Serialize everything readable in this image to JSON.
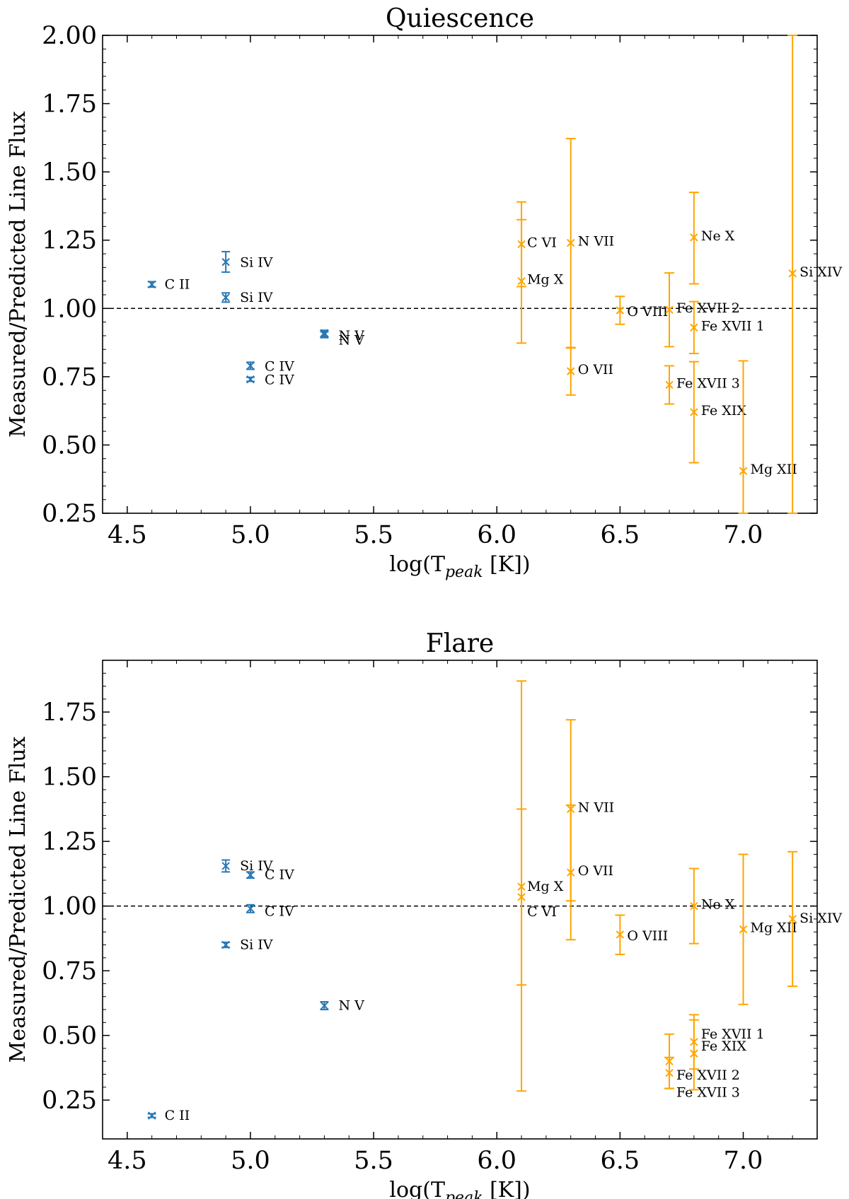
{
  "colors": {
    "uv": "#2878b5",
    "xray": "#ffa500",
    "reference": "#000000"
  },
  "chart_data": [
    {
      "type": "scatter",
      "title": "Quiescence",
      "xlabel": "log(T",
      "xlabel_sub": "peak",
      "xlabel_suffix": " [K])",
      "ylabel": "Measured/Predicted Line Flux",
      "xlim": [
        4.4,
        7.3
      ],
      "ylim": [
        0.25,
        2.0
      ],
      "xticks": [
        "4.5",
        "5.0",
        "5.5",
        "6.0",
        "6.5",
        "7.0"
      ],
      "yticks": [
        "0.25",
        "0.50",
        "0.75",
        "1.00",
        "1.25",
        "1.50",
        "1.75",
        "2.00"
      ],
      "reference_line": 1.0,
      "points": [
        {
          "label": "C II",
          "x": 4.6,
          "y": 1.088,
          "yerr": [
            1.078,
            1.098
          ],
          "color": "uv"
        },
        {
          "label": "Si IV",
          "x": 4.9,
          "y": 1.17,
          "yerr": [
            1.133,
            1.208
          ],
          "color": "uv"
        },
        {
          "label": "Si IV",
          "x": 4.9,
          "y": 1.04,
          "yerr": [
            1.023,
            1.057
          ],
          "color": "uv"
        },
        {
          "label": "C IV",
          "x": 5.0,
          "y": 0.79,
          "yerr": [
            0.777,
            0.803
          ],
          "color": "uv"
        },
        {
          "label": "C IV",
          "x": 5.0,
          "y": 0.74,
          "yerr": [
            0.733,
            0.748
          ],
          "color": "uv"
        },
        {
          "label": "N V",
          "x": 5.3,
          "y": 0.91,
          "yerr": [
            0.896,
            0.92
          ],
          "color": "uv"
        },
        {
          "label": "N V",
          "x": 5.3,
          "y": 0.904,
          "yerr": [
            0.893,
            0.915
          ],
          "color": "uv"
        },
        {
          "label": "C VI",
          "x": 6.1,
          "y": 1.235,
          "yerr": [
            1.08,
            1.39
          ],
          "color": "xray"
        },
        {
          "label": "Mg X",
          "x": 6.1,
          "y": 1.1,
          "yerr": [
            0.873,
            1.325
          ],
          "color": "xray"
        },
        {
          "label": "N VII",
          "x": 6.3,
          "y": 1.24,
          "yerr": [
            0.855,
            1.622
          ],
          "color": "xray"
        },
        {
          "label": "O VII",
          "x": 6.3,
          "y": 0.77,
          "yerr": [
            0.683,
            0.857
          ],
          "color": "xray"
        },
        {
          "label": "O VIII",
          "x": 6.5,
          "y": 0.993,
          "yerr": [
            0.942,
            1.044
          ],
          "color": "xray"
        },
        {
          "label": "Fe XVII 2",
          "x": 6.7,
          "y": 0.995,
          "yerr": [
            0.86,
            1.13
          ],
          "color": "xray"
        },
        {
          "label": "Fe XVII 3",
          "x": 6.7,
          "y": 0.72,
          "yerr": [
            0.65,
            0.79
          ],
          "color": "xray"
        },
        {
          "label": "Ne X",
          "x": 6.8,
          "y": 1.26,
          "yerr": [
            1.09,
            1.425
          ],
          "color": "xray"
        },
        {
          "label": "Fe XVII 1",
          "x": 6.8,
          "y": 0.93,
          "yerr": [
            0.835,
            1.025
          ],
          "color": "xray"
        },
        {
          "label": "Fe XIX",
          "x": 6.8,
          "y": 0.62,
          "yerr": [
            0.435,
            0.805
          ],
          "color": "xray"
        },
        {
          "label": "Mg XII",
          "x": 7.0,
          "y": 0.405,
          "yerr": [
            0.25,
            0.808
          ],
          "color": "xray"
        },
        {
          "label": "Si XIV",
          "x": 7.2,
          "y": 1.128,
          "yerr": [
            0.25,
            2.0
          ],
          "color": "xray"
        }
      ]
    },
    {
      "type": "scatter",
      "title": "Flare",
      "xlabel": "log(T",
      "xlabel_sub": "peak",
      "xlabel_suffix": " [K])",
      "ylabel": "Measured/Predicted Line Flux",
      "xlim": [
        4.4,
        7.3
      ],
      "ylim": [
        0.1,
        1.95
      ],
      "xticks": [
        "4.5",
        "5.0",
        "5.5",
        "6.0",
        "6.5",
        "7.0"
      ],
      "yticks": [
        "0.25",
        "0.50",
        "0.75",
        "1.00",
        "1.25",
        "1.50",
        "1.75"
      ],
      "reference_line": 1.0,
      "points": [
        {
          "label": "C II",
          "x": 4.6,
          "y": 0.19,
          "yerr": [
            0.183,
            0.197
          ],
          "color": "uv"
        },
        {
          "label": "Si IV",
          "x": 4.9,
          "y": 1.155,
          "yerr": [
            1.132,
            1.178
          ],
          "color": "uv"
        },
        {
          "label": "Si IV",
          "x": 4.9,
          "y": 0.85,
          "yerr": [
            0.84,
            0.86
          ],
          "color": "uv"
        },
        {
          "label": "C IV",
          "x": 5.0,
          "y": 1.12,
          "yerr": [
            1.108,
            1.132
          ],
          "color": "uv"
        },
        {
          "label": "C IV",
          "x": 5.0,
          "y": 0.99,
          "yerr": [
            0.975,
            1.005
          ],
          "color": "uv"
        },
        {
          "label": "N V",
          "x": 5.3,
          "y": 0.615,
          "yerr": [
            0.6,
            0.63
          ],
          "color": "uv"
        },
        {
          "label": "Mg X",
          "x": 6.1,
          "y": 1.075,
          "yerr": [
            0.695,
            1.375
          ],
          "color": "xray"
        },
        {
          "label": "C VI",
          "x": 6.1,
          "y": 1.035,
          "yerr": [
            0.285,
            1.87
          ],
          "color": "xray"
        },
        {
          "label": "N VII",
          "x": 6.3,
          "y": 1.375,
          "yerr": [
            1.02,
            1.72
          ],
          "color": "xray"
        },
        {
          "label": "O VII",
          "x": 6.3,
          "y": 1.13,
          "yerr": [
            0.87,
            1.39
          ],
          "color": "xray"
        },
        {
          "label": "O VIII",
          "x": 6.5,
          "y": 0.89,
          "yerr": [
            0.813,
            0.965
          ],
          "color": "xray"
        },
        {
          "label": "Fe XVII 2",
          "x": 6.7,
          "y": 0.4,
          "yerr": [
            0.295,
            0.505
          ],
          "color": "xray"
        },
        {
          "label": "Fe XVII 3",
          "x": 6.7,
          "y": 0.355,
          "yerr": [
            0.295,
            0.415
          ],
          "color": "xray"
        },
        {
          "label": "Ne X",
          "x": 6.8,
          "y": 1.0,
          "yerr": [
            0.855,
            1.145
          ],
          "color": "xray"
        },
        {
          "label": "Fe XVII 1",
          "x": 6.8,
          "y": 0.475,
          "yerr": [
            0.37,
            0.58
          ],
          "color": "xray"
        },
        {
          "label": "Fe XIX",
          "x": 6.8,
          "y": 0.43,
          "yerr": [
            0.29,
            0.56
          ],
          "color": "xray"
        },
        {
          "label": "Mg XII",
          "x": 7.0,
          "y": 0.91,
          "yerr": [
            0.62,
            1.2
          ],
          "color": "xray"
        },
        {
          "label": "Si XIV",
          "x": 7.2,
          "y": 0.95,
          "yerr": [
            0.69,
            1.21
          ],
          "color": "xray"
        }
      ]
    }
  ]
}
